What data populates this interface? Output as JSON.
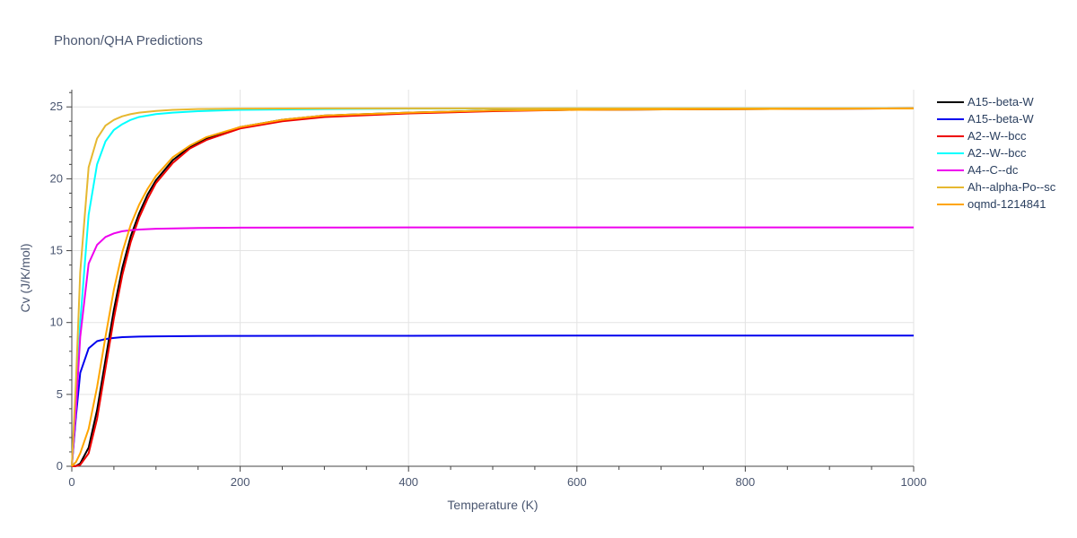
{
  "chart_data": {
    "type": "line",
    "title": "Phonon/QHA Predictions",
    "xlabel": "Temperature (K)",
    "ylabel": "Cv (J/K/mol)",
    "xlim": [
      0,
      1000
    ],
    "ylim": [
      0,
      26.2
    ],
    "x_ticks": [
      0,
      200,
      400,
      600,
      800,
      1000
    ],
    "y_ticks": [
      0,
      5,
      10,
      15,
      20,
      25
    ],
    "grid": true,
    "legend_position": "right",
    "series": [
      {
        "name": "A15--beta-W",
        "color": "#000000",
        "x": [
          0,
          5,
          10,
          20,
          30,
          40,
          50,
          60,
          70,
          80,
          90,
          100,
          120,
          140,
          160,
          200,
          250,
          300,
          400,
          500,
          600,
          800,
          1000
        ],
        "y": [
          0,
          0.02,
          0.2,
          1.3,
          3.9,
          7.4,
          10.9,
          13.8,
          16.0,
          17.6,
          18.9,
          19.9,
          21.3,
          22.2,
          22.8,
          23.6,
          24.1,
          24.4,
          24.6,
          24.75,
          24.8,
          24.85,
          24.9
        ]
      },
      {
        "name": "A15--beta-W",
        "color": "#0000ee",
        "x": [
          0,
          5,
          10,
          20,
          30,
          40,
          50,
          60,
          80,
          100,
          150,
          200,
          300,
          400,
          600,
          800,
          1000
        ],
        "y": [
          0,
          3.5,
          6.5,
          8.2,
          8.7,
          8.85,
          8.93,
          8.98,
          9.02,
          9.04,
          9.06,
          9.07,
          9.08,
          9.08,
          9.09,
          9.09,
          9.09
        ]
      },
      {
        "name": "A2--W--bcc",
        "color": "#ee0000",
        "x": [
          0,
          5,
          10,
          20,
          30,
          40,
          50,
          60,
          70,
          80,
          90,
          100,
          120,
          140,
          160,
          200,
          250,
          300,
          400,
          500,
          600,
          800,
          1000
        ],
        "y": [
          0,
          0.01,
          0.1,
          0.9,
          3.3,
          6.8,
          10.3,
          13.3,
          15.6,
          17.3,
          18.6,
          19.7,
          21.1,
          22.1,
          22.7,
          23.5,
          24.0,
          24.3,
          24.55,
          24.7,
          24.8,
          24.85,
          24.9
        ]
      },
      {
        "name": "A2--W--bcc",
        "color": "#00ffff",
        "x": [
          0,
          5,
          10,
          20,
          30,
          40,
          50,
          60,
          70,
          80,
          100,
          120,
          150,
          200,
          300,
          400,
          600,
          800,
          1000
        ],
        "y": [
          0,
          4.0,
          10.0,
          17.5,
          21.0,
          22.6,
          23.4,
          23.8,
          24.1,
          24.3,
          24.5,
          24.6,
          24.7,
          24.8,
          24.85,
          24.88,
          24.9,
          24.9,
          24.9
        ]
      },
      {
        "name": "A4--C--dc",
        "color": "#ee00ee",
        "x": [
          0,
          5,
          10,
          20,
          30,
          40,
          50,
          60,
          70,
          80,
          100,
          150,
          200,
          300,
          400,
          600,
          800,
          1000
        ],
        "y": [
          0,
          4.0,
          9.0,
          14.1,
          15.4,
          15.95,
          16.2,
          16.35,
          16.42,
          16.47,
          16.52,
          16.58,
          16.6,
          16.61,
          16.62,
          16.62,
          16.62,
          16.62
        ]
      },
      {
        "name": "Ah--alpha-Po--sc",
        "color": "#e6b830",
        "x": [
          0,
          5,
          10,
          20,
          30,
          40,
          50,
          60,
          70,
          80,
          100,
          120,
          150,
          200,
          300,
          400,
          600,
          800,
          1000
        ],
        "y": [
          0,
          6.0,
          13.5,
          20.8,
          22.8,
          23.7,
          24.1,
          24.35,
          24.5,
          24.6,
          24.72,
          24.8,
          24.85,
          24.88,
          24.9,
          24.9,
          24.9,
          24.9,
          24.9
        ]
      },
      {
        "name": "oqmd-1214841",
        "color": "#ffa500",
        "x": [
          0,
          5,
          10,
          20,
          30,
          40,
          50,
          60,
          70,
          80,
          90,
          100,
          120,
          140,
          160,
          200,
          250,
          300,
          400,
          500,
          600,
          800,
          1000
        ],
        "y": [
          0,
          0.3,
          0.9,
          2.6,
          5.5,
          9.0,
          12.3,
          14.9,
          16.8,
          18.2,
          19.3,
          20.2,
          21.5,
          22.3,
          22.9,
          23.6,
          24.1,
          24.4,
          24.6,
          24.75,
          24.8,
          24.85,
          24.9
        ]
      }
    ]
  }
}
